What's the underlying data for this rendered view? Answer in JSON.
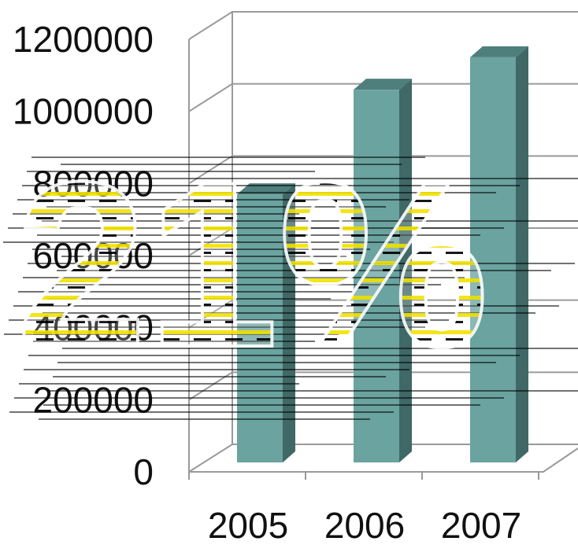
{
  "chart_data": {
    "type": "bar",
    "categories": [
      "2005",
      "2006",
      "2007"
    ],
    "values": [
      770000,
      1060000,
      1150000
    ],
    "ylim": [
      0,
      1200000
    ],
    "yticks": [
      "0",
      "200000",
      "400000",
      "600000",
      "800000",
      "1000000",
      "1200000"
    ],
    "grid": true,
    "legend": "none",
    "title": "",
    "xlabel": "",
    "ylabel": "",
    "overlay_text": "21%",
    "colors": {
      "bar_front": "#6aa3a0",
      "bar_top": "#4f7f7c",
      "bar_side": "#3f6866",
      "overlay_stripe": "#f2e300"
    }
  }
}
